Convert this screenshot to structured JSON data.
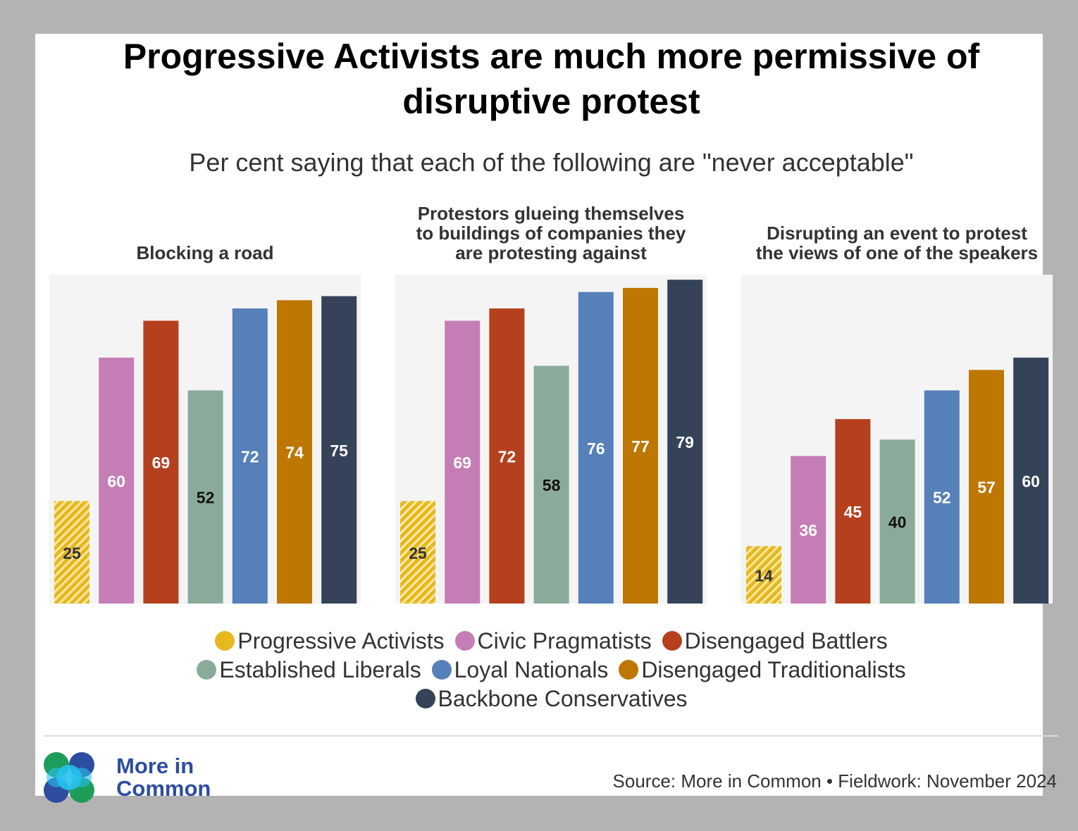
{
  "title": "Progressive Activists are much more permissive of disruptive protest",
  "subtitle": "Per cent saying that each of the following are \"never acceptable\"",
  "chart_data": {
    "type": "bar",
    "ylim": [
      0,
      80
    ],
    "series": [
      {
        "name": "Progressive Activists",
        "color": "#e6b81e"
      },
      {
        "name": "Civic Pragmatists",
        "color": "#c57eb5"
      },
      {
        "name": "Disengaged Battlers",
        "color": "#b5401e"
      },
      {
        "name": "Established Liberals",
        "color": "#8aab9a"
      },
      {
        "name": "Loyal Nationals",
        "color": "#5580b9"
      },
      {
        "name": "Disengaged Traditionalists",
        "color": "#bd7702"
      },
      {
        "name": "Backbone Conservatives",
        "color": "#344358"
      }
    ],
    "panels": [
      {
        "title": "Blocking a road",
        "values": [
          25,
          60,
          69,
          52,
          72,
          74,
          75
        ]
      },
      {
        "title": "Protestors glueing themselves to buildings of companies they are protesting against",
        "values": [
          25,
          69,
          72,
          58,
          76,
          77,
          79
        ]
      },
      {
        "title": "Disrupting an event to protest the views of one of the speakers",
        "values": [
          14,
          36,
          45,
          40,
          52,
          57,
          60
        ]
      }
    ]
  },
  "logo": {
    "line1": "More in",
    "line2": "Common"
  },
  "source": "Source: More in Common • Fieldwork: November 2024"
}
